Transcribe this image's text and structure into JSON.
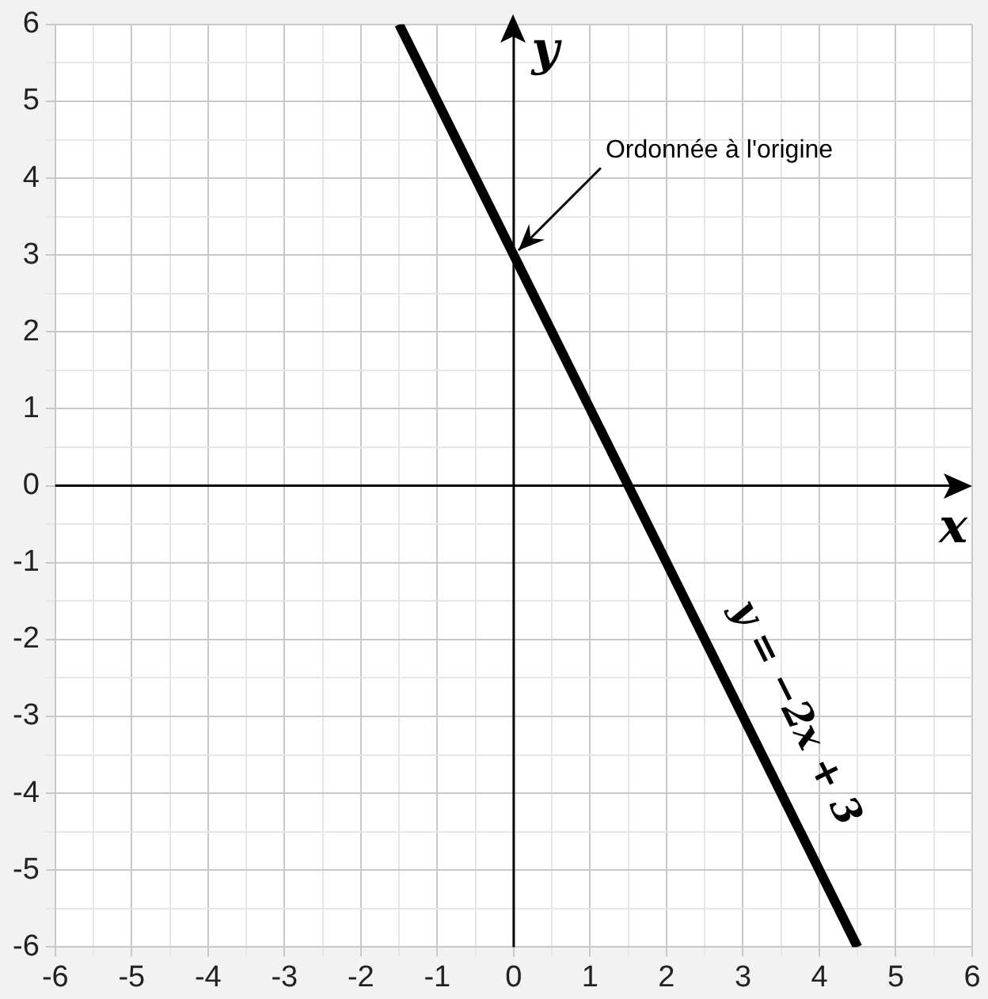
{
  "chart_data": {
    "type": "line",
    "xlabel": "x",
    "ylabel": "y",
    "xlim": [
      -6,
      6
    ],
    "ylim": [
      -6,
      6
    ],
    "xticks": [
      -6,
      {
        "value": -5.5,
        "label": null
      },
      -5,
      {
        "value": -4.5,
        "label": null
      },
      -4,
      {
        "value": -3.5,
        "label": null
      },
      -3,
      {
        "value": -2.5,
        "label": null
      },
      -2,
      {
        "value": -1.5,
        "label": null
      },
      -1,
      {
        "value": -0.5,
        "label": null
      },
      0,
      {
        "value": 0.5,
        "label": null
      },
      1,
      {
        "value": 1.5,
        "label": null
      },
      2,
      {
        "value": 2.5,
        "label": null
      },
      3,
      {
        "value": 3.5,
        "label": null
      },
      4,
      {
        "value": 4.5,
        "label": null
      },
      5,
      {
        "value": 5.5,
        "label": null
      },
      6
    ],
    "yticks": [
      -6,
      {
        "value": -5.5,
        "label": null
      },
      -5,
      {
        "value": -4.5,
        "label": null
      },
      -4,
      {
        "value": -3.5,
        "label": null
      },
      -3,
      {
        "value": -2.5,
        "label": null
      },
      -2,
      {
        "value": -1.5,
        "label": null
      },
      -1,
      {
        "value": -0.5,
        "label": null
      },
      0,
      {
        "value": 0.5,
        "label": null
      },
      1,
      {
        "value": 1.5,
        "label": null
      },
      2,
      {
        "value": 2.5,
        "label": null
      },
      3,
      {
        "value": 3.5,
        "label": null
      },
      4,
      {
        "value": 4.5,
        "label": null
      },
      5,
      {
        "value": 5.5,
        "label": null
      },
      6
    ],
    "series": [
      {
        "name": "y = −2x + 3",
        "color": "#000000",
        "x": [
          -1.5,
          4.5
        ],
        "values": [
          6,
          -6
        ]
      }
    ],
    "annotations": [
      {
        "text": "Ordonnée à l'origine",
        "x": 0,
        "y": 3
      }
    ],
    "grid": true,
    "marker": "none",
    "line_style": "solid"
  }
}
